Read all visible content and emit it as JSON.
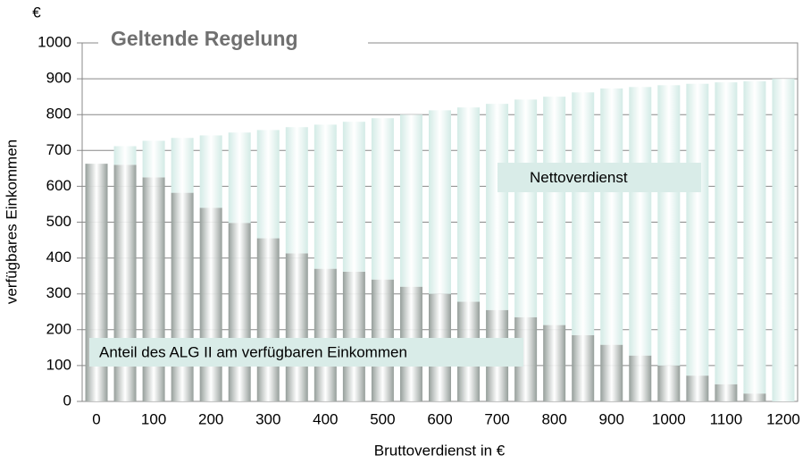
{
  "chart_data": {
    "type": "stacked_bar",
    "title": "Geltende Regelung",
    "y_unit": "€",
    "y_label": "verfügbares Einkommen",
    "x_label": "Bruttoverdienst in €",
    "categories": [
      "0",
      null,
      "100",
      null,
      "200",
      null,
      "300",
      null,
      "400",
      null,
      "500",
      null,
      "600",
      null,
      "700",
      null,
      "800",
      null,
      "900",
      null,
      "1000",
      null,
      "1100",
      null,
      "1200"
    ],
    "series": [
      {
        "name": "Anteil des ALG II am verfügbaren Einkommen",
        "color": "#959e9a",
        "values": [
          663,
          660,
          625,
          582,
          540,
          498,
          455,
          413,
          370,
          362,
          340,
          320,
          300,
          278,
          255,
          235,
          213,
          185,
          158,
          128,
          100,
          72,
          48,
          22,
          0
        ]
      },
      {
        "name": "Nettoverdienst",
        "color": "#d3ebe6",
        "values": [
          0,
          52,
          102,
          153,
          202,
          252,
          302,
          352,
          402,
          418,
          450,
          480,
          512,
          542,
          575,
          607,
          637,
          677,
          715,
          749,
          782,
          814,
          842,
          871,
          900
        ]
      }
    ],
    "ylim": [
      0,
      1000
    ],
    "yticks": [
      0,
      100,
      200,
      300,
      400,
      500,
      600,
      700,
      800,
      900,
      1000
    ],
    "grid": true
  }
}
